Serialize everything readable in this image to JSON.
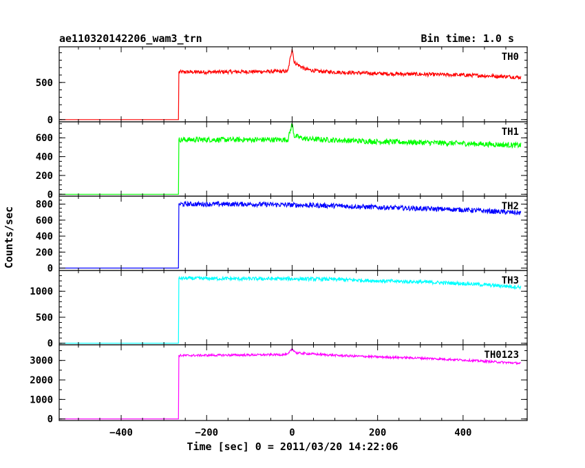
{
  "header": {
    "title": "ae110320142206_wam3_trn",
    "bin_time": "Bin time: 1.0 s"
  },
  "axes": {
    "ylabel": "Counts/sec",
    "xlabel": "Time [sec] 0 = 2011/03/20 14:22:06"
  },
  "chart_data": {
    "type": "line",
    "xlim": [
      -545,
      550
    ],
    "x_ticks": [
      -400,
      -200,
      0,
      200,
      400
    ],
    "x_tick_labels": [
      "−400",
      "−200",
      "0",
      "200",
      "400"
    ],
    "turn_on_time": -265,
    "panels": [
      {
        "name": "TH0",
        "color": "#ff0000",
        "ylim": [
          -30,
          980
        ],
        "y_ticks": [
          0,
          500
        ],
        "y_tick_labels": [
          "0",
          "500"
        ],
        "y_minor": 100,
        "points": [
          [
            -545,
            0
          ],
          [
            -266,
            0
          ],
          [
            -265,
            640
          ],
          [
            -200,
            640
          ],
          [
            -100,
            645
          ],
          [
            -10,
            650
          ],
          [
            0,
            960
          ],
          [
            5,
            770
          ],
          [
            30,
            680
          ],
          [
            60,
            650
          ],
          [
            100,
            640
          ],
          [
            200,
            620
          ],
          [
            300,
            610
          ],
          [
            400,
            600
          ],
          [
            500,
            580
          ],
          [
            535,
            570
          ]
        ],
        "noise": 25
      },
      {
        "name": "TH1",
        "color": "#00ff00",
        "ylim": [
          -20,
          770
        ],
        "y_ticks": [
          0,
          200,
          400,
          600
        ],
        "y_tick_labels": [
          "0",
          "200",
          "400",
          "600"
        ],
        "y_minor": 50,
        "points": [
          [
            -545,
            0
          ],
          [
            -266,
            0
          ],
          [
            -265,
            580
          ],
          [
            -200,
            580
          ],
          [
            -100,
            580
          ],
          [
            -10,
            580
          ],
          [
            0,
            750
          ],
          [
            5,
            620
          ],
          [
            30,
            590
          ],
          [
            100,
            575
          ],
          [
            200,
            560
          ],
          [
            300,
            550
          ],
          [
            400,
            540
          ],
          [
            535,
            520
          ]
        ],
        "noise": 28
      },
      {
        "name": "TH2",
        "color": "#0000ff",
        "ylim": [
          -30,
          900
        ],
        "y_ticks": [
          0,
          200,
          400,
          600,
          800
        ],
        "y_tick_labels": [
          "0",
          "200",
          "400",
          "600",
          "800"
        ],
        "y_minor": 50,
        "points": [
          [
            -545,
            0
          ],
          [
            -266,
            0
          ],
          [
            -265,
            800
          ],
          [
            -100,
            800
          ],
          [
            0,
            790
          ],
          [
            100,
            780
          ],
          [
            200,
            760
          ],
          [
            300,
            745
          ],
          [
            400,
            730
          ],
          [
            535,
            690
          ]
        ],
        "noise": 30
      },
      {
        "name": "TH3",
        "color": "#00ffff",
        "ylim": [
          -30,
          1400
        ],
        "y_ticks": [
          0,
          500,
          1000
        ],
        "y_tick_labels": [
          "0",
          "500",
          "1000"
        ],
        "y_minor": 100,
        "points": [
          [
            -545,
            0
          ],
          [
            -266,
            0
          ],
          [
            -265,
            1250
          ],
          [
            -100,
            1240
          ],
          [
            0,
            1240
          ],
          [
            100,
            1230
          ],
          [
            200,
            1200
          ],
          [
            300,
            1180
          ],
          [
            400,
            1150
          ],
          [
            535,
            1080
          ]
        ],
        "noise": 35
      },
      {
        "name": "TH0123",
        "color": "#ff00ff",
        "ylim": [
          -80,
          3800
        ],
        "y_ticks": [
          0,
          1000,
          2000,
          3000
        ],
        "y_tick_labels": [
          "0",
          "1000",
          "2000",
          "3000"
        ],
        "y_minor": 500,
        "points": [
          [
            -545,
            0
          ],
          [
            -266,
            0
          ],
          [
            -265,
            3250
          ],
          [
            -100,
            3280
          ],
          [
            -10,
            3300
          ],
          [
            0,
            3600
          ],
          [
            10,
            3380
          ],
          [
            100,
            3260
          ],
          [
            200,
            3180
          ],
          [
            300,
            3120
          ],
          [
            400,
            3020
          ],
          [
            535,
            2850
          ]
        ],
        "noise": 55
      }
    ]
  }
}
